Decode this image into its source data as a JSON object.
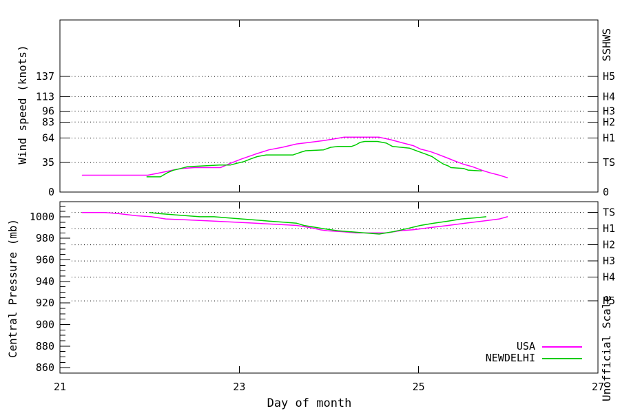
{
  "colors": {
    "background": "#ffffff",
    "axis": "#000000",
    "grid": "#000000",
    "text": "#000000",
    "usa": "#ff00ff",
    "newdelhi": "#00cc00"
  },
  "legend": {
    "entries": [
      {
        "label": "USA",
        "color": "#ff00ff"
      },
      {
        "label": "NEWDELHI",
        "color": "#00cc00"
      }
    ]
  },
  "chart_data": [
    {
      "type": "line",
      "id": "wind-speed",
      "ylabel": "Wind speed (knots)",
      "y2label": "SSHWS",
      "xlabel": "",
      "xlim": [
        21,
        27
      ],
      "ylim": [
        0,
        204
      ],
      "grid": true,
      "grid_values": [
        35,
        64,
        83,
        96,
        113,
        137
      ],
      "yticks": [
        {
          "value": 0,
          "label": "0"
        },
        {
          "value": 35,
          "label": "35"
        },
        {
          "value": 64,
          "label": "64"
        },
        {
          "value": 83,
          "label": "83"
        },
        {
          "value": 96,
          "label": "96"
        },
        {
          "value": 113,
          "label": "113"
        },
        {
          "value": 137,
          "label": "137"
        }
      ],
      "y2ticks": [
        {
          "value": 0,
          "label": "0"
        },
        {
          "value": 35,
          "label": "TS"
        },
        {
          "value": 64,
          "label": "H1"
        },
        {
          "value": 83,
          "label": "H2"
        },
        {
          "value": 96,
          "label": "H3"
        },
        {
          "value": 113,
          "label": "H4"
        },
        {
          "value": 137,
          "label": "H5"
        }
      ],
      "x_tick_marks": [
        23,
        25
      ],
      "series": [
        {
          "name": "USA",
          "color": "#ff00ff",
          "points": [
            [
              21.25,
              20
            ],
            [
              21.98,
              20
            ],
            [
              22.08,
              22
            ],
            [
              22.17,
              24
            ],
            [
              22.26,
              26
            ],
            [
              22.36,
              28
            ],
            [
              22.5,
              29
            ],
            [
              22.79,
              29
            ],
            [
              22.9,
              34
            ],
            [
              23.02,
              39
            ],
            [
              23.18,
              45
            ],
            [
              23.33,
              50
            ],
            [
              23.48,
              53
            ],
            [
              23.64,
              57
            ],
            [
              23.79,
              59
            ],
            [
              23.94,
              61
            ],
            [
              24.06,
              63
            ],
            [
              24.17,
              65
            ],
            [
              24.56,
              65
            ],
            [
              24.69,
              62
            ],
            [
              24.83,
              58
            ],
            [
              24.94,
              55
            ],
            [
              25.02,
              51
            ],
            [
              25.13,
              48
            ],
            [
              25.21,
              45
            ],
            [
              25.33,
              40
            ],
            [
              25.4,
              37
            ],
            [
              25.5,
              33
            ],
            [
              25.6,
              30
            ],
            [
              25.7,
              26
            ],
            [
              25.79,
              23
            ],
            [
              25.9,
              20
            ],
            [
              25.99,
              17
            ]
          ]
        },
        {
          "name": "NEWDELHI",
          "color": "#00cc00",
          "points": [
            [
              21.97,
              18
            ],
            [
              22.12,
              18
            ],
            [
              22.2,
              23
            ],
            [
              22.27,
              26
            ],
            [
              22.35,
              28
            ],
            [
              22.42,
              30
            ],
            [
              22.6,
              31
            ],
            [
              22.78,
              32
            ],
            [
              22.9,
              32
            ],
            [
              22.97,
              34
            ],
            [
              23.05,
              36
            ],
            [
              23.12,
              39
            ],
            [
              23.2,
              42
            ],
            [
              23.3,
              44
            ],
            [
              23.6,
              44
            ],
            [
              23.68,
              47
            ],
            [
              23.74,
              49
            ],
            [
              23.94,
              50
            ],
            [
              24.02,
              53
            ],
            [
              24.1,
              54
            ],
            [
              24.25,
              54
            ],
            [
              24.3,
              56
            ],
            [
              24.35,
              59
            ],
            [
              24.4,
              60
            ],
            [
              24.54,
              60
            ],
            [
              24.64,
              58
            ],
            [
              24.71,
              54
            ],
            [
              24.9,
              52
            ],
            [
              25.0,
              48
            ],
            [
              25.08,
              45
            ],
            [
              25.15,
              42
            ],
            [
              25.22,
              37
            ],
            [
              25.28,
              33
            ],
            [
              25.33,
              31
            ],
            [
              25.36,
              29
            ],
            [
              25.5,
              28
            ],
            [
              25.55,
              26
            ],
            [
              25.7,
              25
            ]
          ]
        }
      ]
    },
    {
      "type": "line",
      "id": "central-pressure",
      "ylabel": "Central Pressure (mb)",
      "y2label": "Unofficial Scale",
      "xlabel": "Day of month",
      "xlim": [
        21,
        27
      ],
      "ylim": [
        855,
        1014
      ],
      "grid": true,
      "grid_values": [
        1004,
        989,
        974,
        959,
        944,
        922
      ],
      "minor_tick_step": 5,
      "yticks": [
        {
          "value": 860,
          "label": "860"
        },
        {
          "value": 880,
          "label": "880"
        },
        {
          "value": 900,
          "label": "900"
        },
        {
          "value": 920,
          "label": "920"
        },
        {
          "value": 940,
          "label": "940"
        },
        {
          "value": 960,
          "label": "960"
        },
        {
          "value": 980,
          "label": "980"
        },
        {
          "value": 1000,
          "label": "1000"
        }
      ],
      "y2ticks": [
        {
          "value": 1004,
          "label": "TS"
        },
        {
          "value": 989,
          "label": "H1"
        },
        {
          "value": 974,
          "label": "H2"
        },
        {
          "value": 959,
          "label": "H3"
        },
        {
          "value": 944,
          "label": "H4"
        },
        {
          "value": 922,
          "label": "H5"
        }
      ],
      "xticks": [
        {
          "value": 21,
          "label": "21"
        },
        {
          "value": 23,
          "label": "23"
        },
        {
          "value": 25,
          "label": "25"
        },
        {
          "value": 27,
          "label": "27"
        }
      ],
      "x_tick_marks": [
        23,
        25
      ],
      "series": [
        {
          "name": "USA",
          "color": "#ff00ff",
          "points": [
            [
              21.25,
              1004
            ],
            [
              21.5,
              1004
            ],
            [
              21.65,
              1003
            ],
            [
              21.85,
              1001
            ],
            [
              22.02,
              1000
            ],
            [
              22.18,
              998
            ],
            [
              22.45,
              997
            ],
            [
              22.72,
              996
            ],
            [
              22.95,
              995
            ],
            [
              23.18,
              994
            ],
            [
              23.41,
              993
            ],
            [
              23.64,
              992
            ],
            [
              23.79,
              990
            ],
            [
              23.9,
              988
            ],
            [
              23.98,
              987
            ],
            [
              24.17,
              986
            ],
            [
              24.3,
              985
            ],
            [
              24.64,
              985
            ],
            [
              24.79,
              987
            ],
            [
              24.94,
              988
            ],
            [
              25.13,
              990
            ],
            [
              25.33,
              992
            ],
            [
              25.52,
              994
            ],
            [
              25.71,
              996
            ],
            [
              25.9,
              998
            ],
            [
              25.99,
              1000
            ]
          ]
        },
        {
          "name": "NEWDELHI",
          "color": "#00cc00",
          "points": [
            [
              22.0,
              1004
            ],
            [
              22.1,
              1003
            ],
            [
              22.25,
              1002
            ],
            [
              22.41,
              1001
            ],
            [
              22.56,
              1000
            ],
            [
              22.72,
              1000
            ],
            [
              22.87,
              999
            ],
            [
              23.03,
              998
            ],
            [
              23.18,
              997
            ],
            [
              23.33,
              996
            ],
            [
              23.49,
              995
            ],
            [
              23.64,
              994
            ],
            [
              23.72,
              992
            ],
            [
              23.79,
              991
            ],
            [
              23.94,
              989
            ],
            [
              24.1,
              987
            ],
            [
              24.25,
              986
            ],
            [
              24.4,
              985
            ],
            [
              24.56,
              984
            ],
            [
              24.71,
              986
            ],
            [
              24.87,
              989
            ],
            [
              25.02,
              992
            ],
            [
              25.17,
              994
            ],
            [
              25.33,
              996
            ],
            [
              25.48,
              998
            ],
            [
              25.63,
              999
            ],
            [
              25.75,
              1000
            ]
          ]
        }
      ]
    }
  ]
}
